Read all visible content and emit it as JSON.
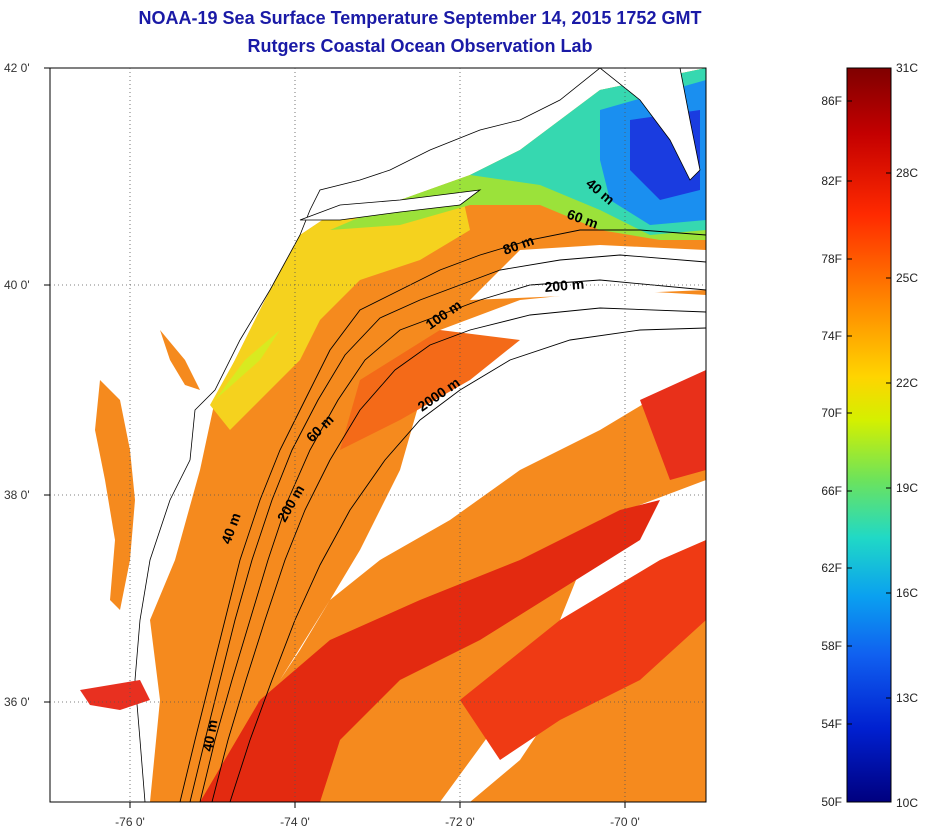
{
  "title": {
    "line1": "NOAA-19 Sea Surface Temperature September 14, 2015 1752 GMT",
    "line2": "Rutgers Coastal Ocean Observation Lab"
  },
  "axes": {
    "y_labels": [
      "42 0'",
      "40 0'",
      "38 0'",
      "36 0'"
    ],
    "x_labels": [
      "-76 0'",
      "-74 0'",
      "-72 0'",
      "-70 0'"
    ]
  },
  "contours": [
    {
      "label": "40 m"
    },
    {
      "label": "60 m"
    },
    {
      "label": "80 m"
    },
    {
      "label": "200 m"
    },
    {
      "label": "100 m"
    },
    {
      "label": "2000 m"
    },
    {
      "label": "60 m"
    },
    {
      "label": "200 m"
    },
    {
      "label": "40 m"
    },
    {
      "label": "40 m"
    }
  ],
  "colorbar": {
    "fahrenheit": [
      "86F",
      "82F",
      "78F",
      "74F",
      "70F",
      "66F",
      "62F",
      "58F",
      "54F",
      "50F"
    ],
    "celsius": [
      "31C",
      "28C",
      "25C",
      "22C",
      "19C",
      "16C",
      "13C",
      "10C"
    ],
    "colors": [
      "#7f0000",
      "#c40000",
      "#ff2a00",
      "#ff8800",
      "#ffd400",
      "#d4f000",
      "#6ee35a",
      "#20d9c6",
      "#0aa0f0",
      "#1060f0",
      "#0020d0",
      "#00007f"
    ]
  },
  "colors": {
    "title": "#1a1aa6",
    "land": "#ffffff",
    "cloud": "#ffffff"
  }
}
